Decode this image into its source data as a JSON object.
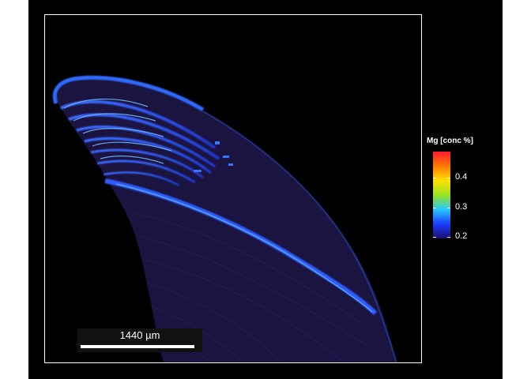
{
  "scalebar": {
    "label": "1440 µm"
  },
  "legend": {
    "title": "Mg [conc %]",
    "ticks": [
      "0.4",
      "0.3",
      "0.2"
    ],
    "colors": [
      "#1e0d6e",
      "#1a3cff",
      "#27c8ff",
      "#9be31f",
      "#ffe000",
      "#ff7a00",
      "#ff1a2e"
    ]
  },
  "map": {
    "background": "#000000",
    "specimen_color": "#1b1440",
    "band_color": "#2850ff",
    "highlight_color": "#5aa8ff"
  }
}
